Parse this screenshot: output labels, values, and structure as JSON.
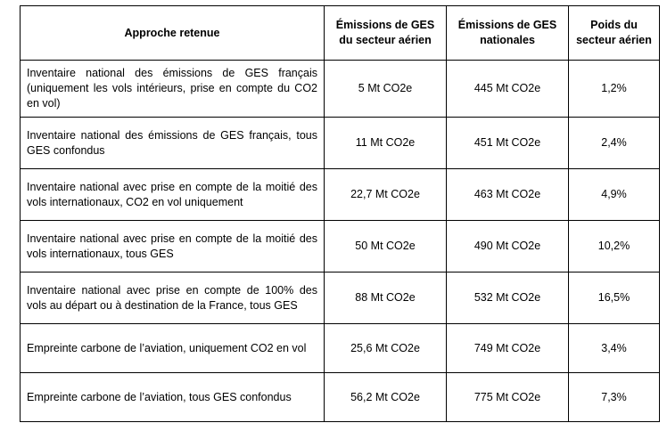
{
  "table": {
    "headers": [
      "Approche retenue",
      "Émissions de GES du secteur aérien",
      "Émissions de GES nationales",
      "Poids du secteur aérien"
    ],
    "rows": [
      {
        "approach": "Inventaire national des émissions de GES français (uniquement les vols intérieurs, prise en compte du CO2 en vol)",
        "aviation": "5 Mt CO2e",
        "national": "445 Mt CO2e",
        "share": "1,2%"
      },
      {
        "approach": "Inventaire national des émissions de GES français, tous GES confondus",
        "aviation": "11 Mt CO2e",
        "national": "451 Mt CO2e",
        "share": "2,4%"
      },
      {
        "approach": "Inventaire national avec prise en compte de la moitié des vols internationaux, CO2 en vol uniquement",
        "aviation": "22,7 Mt CO2e",
        "national": "463 Mt CO2e",
        "share": "4,9%"
      },
      {
        "approach": "Inventaire national avec prise en compte de la moitié des vols internationaux, tous GES",
        "aviation": "50 Mt CO2e",
        "national": "490 Mt CO2e",
        "share": "10,2%"
      },
      {
        "approach": "Inventaire national avec prise en compte de 100% des vols au départ ou à destination de la France, tous GES",
        "aviation": "88 Mt CO2e",
        "national": "532 Mt CO2e",
        "share": "16,5%"
      },
      {
        "approach": "Empreinte carbone de l’aviation, uniquement CO2 en vol",
        "aviation": "25,6 Mt CO2e",
        "national": "749 Mt CO2e",
        "share": "3,4%"
      },
      {
        "approach": "Empreinte carbone de l’aviation, tous GES confondus",
        "aviation": "56,2 Mt CO2e",
        "national": "775 Mt CO2e",
        "share": "7,3%"
      }
    ]
  }
}
